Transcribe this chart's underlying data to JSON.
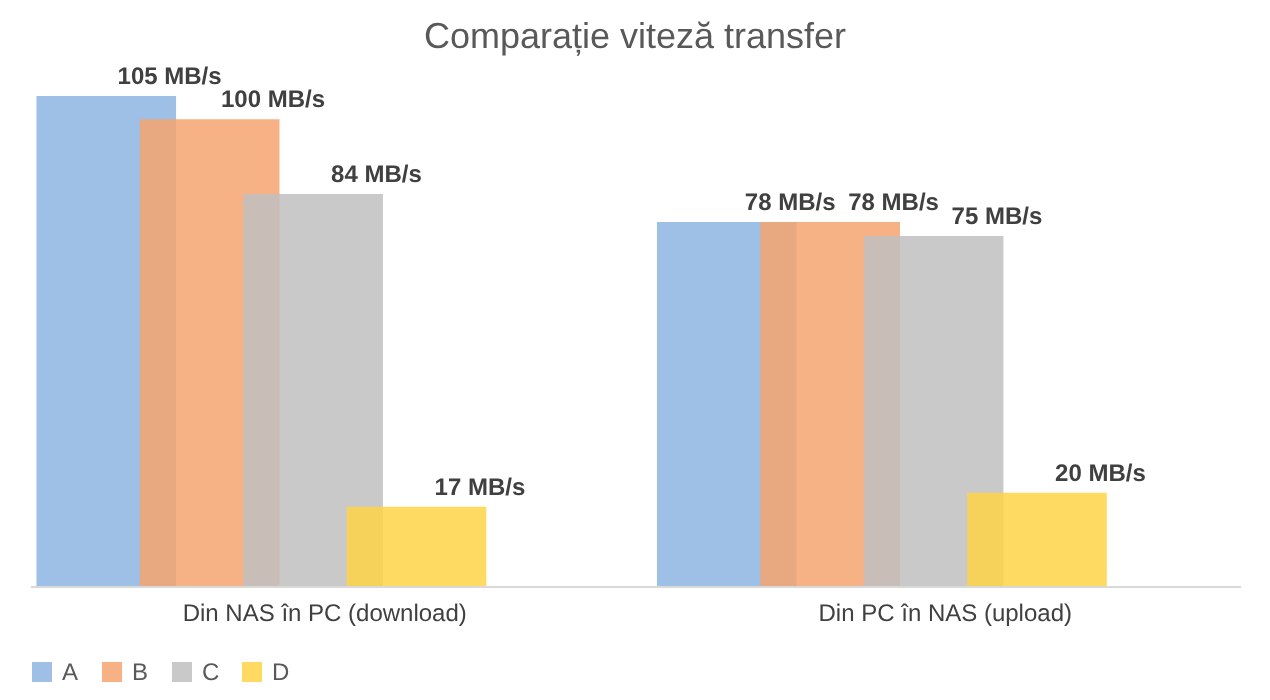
{
  "chart_data": {
    "type": "bar",
    "title": "Comparație viteză transfer",
    "categories": [
      "Din NAS în PC (download)",
      "Din PC în NAS (upload)"
    ],
    "series": [
      {
        "name": "A",
        "color": "#8db4e2",
        "values": [
          105,
          78
        ],
        "value_labels": [
          "105 MB/s",
          "78 MB/s"
        ]
      },
      {
        "name": "B",
        "color": "#f4a46e",
        "values": [
          100,
          78
        ],
        "value_labels": [
          "100 MB/s",
          "78 MB/s"
        ]
      },
      {
        "name": "C",
        "color": "#c0c0c0",
        "values": [
          84,
          75
        ],
        "value_labels": [
          "84 MB/s",
          "75 MB/s"
        ]
      },
      {
        "name": "D",
        "color": "#ffd347",
        "values": [
          17,
          20
        ],
        "value_labels": [
          "17 MB/s",
          "20 MB/s"
        ]
      }
    ],
    "legend": "bottom"
  }
}
